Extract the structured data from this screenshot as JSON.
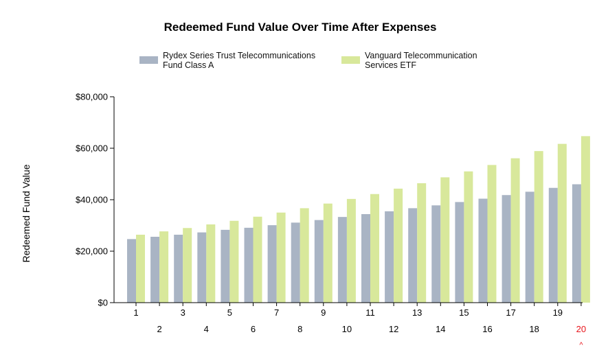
{
  "chart_data": {
    "type": "bar",
    "title": "Redeemed Fund Value Over Time After Expenses",
    "ylabel": "Redeemed Fund Value",
    "xlabel": "",
    "ylim": [
      0,
      80000
    ],
    "yticks": [
      0,
      20000,
      40000,
      60000,
      80000
    ],
    "ytick_labels": [
      "$0",
      "$20,000",
      "$40,000",
      "$60,000",
      "$80,000"
    ],
    "categories": [
      "1",
      "2",
      "3",
      "4",
      "5",
      "6",
      "7",
      "8",
      "9",
      "10",
      "11",
      "12",
      "13",
      "14",
      "15",
      "16",
      "17",
      "18",
      "19",
      "20"
    ],
    "highlighted_category": "20",
    "highlight_marker": "^",
    "legend_position": "top",
    "grid": false,
    "series": [
      {
        "name": "Rydex Series Trust Telecommunications Fund Class A",
        "legend_lines": [
          "Rydex Series Trust Telecommunications",
          "Fund Class A"
        ],
        "color": "#a9b4c4",
        "values": [
          24700,
          25600,
          26400,
          27300,
          28300,
          29100,
          30100,
          31100,
          32100,
          33300,
          34400,
          35500,
          36700,
          37800,
          39100,
          40400,
          41800,
          43100,
          44600,
          46000
        ]
      },
      {
        "name": "Vanguard Telecommunication Services ETF",
        "legend_lines": [
          "Vanguard Telecommunication",
          "Services ETF"
        ],
        "color": "#d8e89b",
        "values": [
          26400,
          27700,
          29000,
          30400,
          31800,
          33400,
          35000,
          36700,
          38500,
          40300,
          42200,
          44300,
          46400,
          48700,
          51000,
          53500,
          56100,
          58900,
          61700,
          64700
        ]
      }
    ]
  }
}
